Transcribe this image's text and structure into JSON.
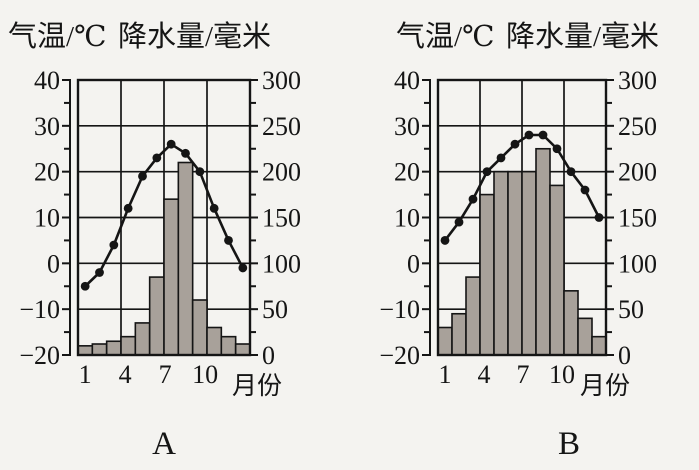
{
  "figure": {
    "type": "climate-comparison",
    "paper_color": "#f4f3f0",
    "ink_color": "#151515",
    "bar_color": "#a8a19a"
  },
  "chart_data": [
    {
      "id": "A",
      "type": "bar",
      "subtype": "climograph (precipitation bars + temperature line)",
      "caption": "A",
      "months": [
        1,
        2,
        3,
        4,
        5,
        6,
        7,
        8,
        9,
        10,
        11,
        12
      ],
      "series": [
        {
          "name": "气温",
          "type": "line",
          "axis": "left",
          "unit": "℃",
          "values": [
            -5,
            -2,
            4,
            12,
            19,
            23,
            26,
            24,
            20,
            12,
            5,
            -1
          ]
        },
        {
          "name": "降水量",
          "type": "bar",
          "axis": "right",
          "unit": "毫米",
          "values": [
            10,
            12,
            15,
            20,
            35,
            85,
            170,
            210,
            60,
            30,
            20,
            12
          ]
        }
      ],
      "left_axis": {
        "title": "气温/℃",
        "min": -20,
        "max": 40,
        "ticks": [
          40,
          30,
          20,
          10,
          0,
          -10,
          -20
        ],
        "minor_step": 5
      },
      "right_axis": {
        "title": "降水量/毫米",
        "min": 0,
        "max": 300,
        "ticks": [
          300,
          250,
          200,
          150,
          100,
          50,
          0
        ],
        "minor_step": 25
      },
      "x_axis": {
        "title": "月份",
        "tick_labels": [
          "1",
          "4",
          "7",
          "10"
        ],
        "tick_months": [
          1,
          4,
          7,
          10
        ]
      },
      "grid": true,
      "legend": "none"
    },
    {
      "id": "B",
      "type": "bar",
      "subtype": "climograph (precipitation bars + temperature line)",
      "caption": "B",
      "months": [
        1,
        2,
        3,
        4,
        5,
        6,
        7,
        8,
        9,
        10,
        11,
        12
      ],
      "series": [
        {
          "name": "气温",
          "type": "line",
          "axis": "left",
          "unit": "℃",
          "values": [
            5,
            9,
            14,
            20,
            23,
            26,
            28,
            28,
            25,
            20,
            16,
            10
          ]
        },
        {
          "name": "降水量",
          "type": "bar",
          "axis": "right",
          "unit": "毫米",
          "values": [
            30,
            45,
            85,
            175,
            200,
            200,
            200,
            225,
            185,
            70,
            40,
            20
          ]
        }
      ],
      "left_axis": {
        "title": "气温/℃",
        "min": -20,
        "max": 40,
        "ticks": [
          40,
          30,
          20,
          10,
          0,
          -10,
          -20
        ],
        "minor_step": 5
      },
      "right_axis": {
        "title": "降水量/毫米",
        "min": 0,
        "max": 300,
        "ticks": [
          300,
          250,
          200,
          150,
          100,
          50,
          0
        ],
        "minor_step": 25
      },
      "x_axis": {
        "title": "月份",
        "tick_labels": [
          "1",
          "4",
          "7",
          "10"
        ],
        "tick_months": [
          1,
          4,
          7,
          10
        ]
      },
      "grid": true,
      "legend": "none"
    }
  ]
}
